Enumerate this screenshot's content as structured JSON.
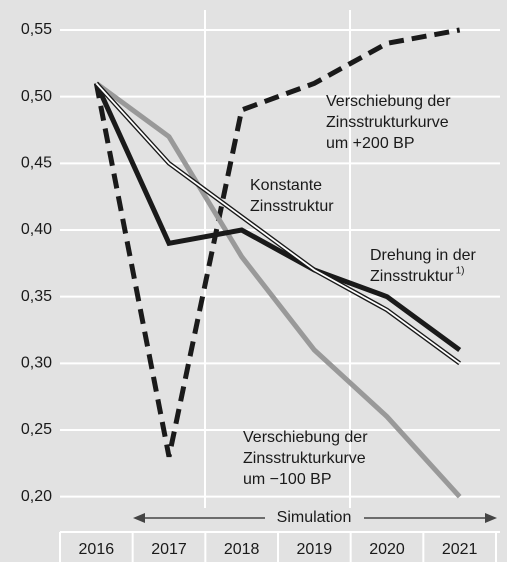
{
  "chart_data": {
    "type": "line",
    "categories": [
      "2016",
      "2017",
      "2018",
      "2019",
      "2020",
      "2021"
    ],
    "ylim": [
      0.175,
      0.565
    ],
    "yticks": [
      {
        "value": 0.2,
        "label": "0,20"
      },
      {
        "value": 0.25,
        "label": "0,25"
      },
      {
        "value": 0.3,
        "label": "0,30"
      },
      {
        "value": 0.35,
        "label": "0,35"
      },
      {
        "value": 0.4,
        "label": "0,40"
      },
      {
        "value": 0.45,
        "label": "0,45"
      },
      {
        "value": 0.5,
        "label": "0,50"
      },
      {
        "value": 0.55,
        "label": "0,55"
      }
    ],
    "grid": true,
    "series": [
      {
        "label_lines": [
          "Verschiebung der",
          "Zinsstrukturkurve",
          "um +200 BP"
        ],
        "color": "#1a1a1a",
        "style": "dashed",
        "values": [
          0.51,
          0.23,
          0.49,
          0.51,
          0.54,
          0.55
        ]
      },
      {
        "label_lines": [
          "Verschiebung der",
          "Zinsstrukturkurve",
          "um −100 BP"
        ],
        "color": "#999999",
        "style": "solid",
        "values": [
          0.51,
          0.47,
          0.38,
          0.31,
          0.26,
          0.2
        ]
      },
      {
        "label_lines": [
          "Drehung in der",
          "Zinsstruktur"
        ],
        "footnote": "1)",
        "color": "#1a1a1a",
        "style": "solid",
        "values": [
          0.51,
          0.39,
          0.4,
          0.37,
          0.35,
          0.31
        ]
      },
      {
        "label_lines": [
          "Konstante",
          "Zinsstruktur"
        ],
        "color": "#ffffff",
        "style": "outlined",
        "values": [
          0.51,
          0.45,
          0.41,
          0.37,
          0.34,
          0.3
        ]
      }
    ],
    "annotations": [
      {
        "text": "Simulation"
      }
    ]
  }
}
